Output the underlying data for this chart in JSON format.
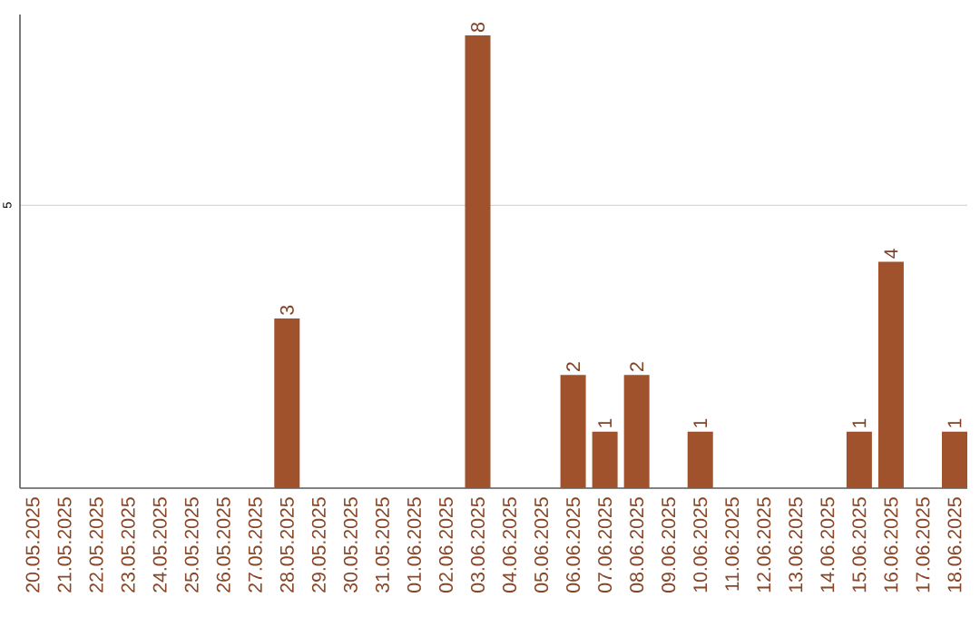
{
  "chart_data": {
    "type": "bar",
    "color": "#a0522d",
    "categories": [
      "20.05.2025",
      "21.05.2025",
      "22.05.2025",
      "23.05.2025",
      "24.05.2025",
      "25.05.2025",
      "26.05.2025",
      "27.05.2025",
      "28.05.2025",
      "29.05.2025",
      "30.05.2025",
      "31.05.2025",
      "01.06.2025",
      "02.06.2025",
      "03.06.2025",
      "04.06.2025",
      "05.06.2025",
      "06.06.2025",
      "07.06.2025",
      "08.06.2025",
      "09.06.2025",
      "10.06.2025",
      "11.06.2025",
      "12.06.2025",
      "13.06.2025",
      "14.06.2025",
      "15.06.2025",
      "16.06.2025",
      "17.06.2025",
      "18.06.2025"
    ],
    "values": [
      0,
      0,
      0,
      0,
      0,
      0,
      0,
      0,
      3,
      0,
      0,
      0,
      0,
      0,
      8,
      0,
      0,
      2,
      1,
      2,
      0,
      1,
      0,
      0,
      0,
      0,
      1,
      4,
      0,
      1
    ],
    "value_labels": [
      null,
      null,
      null,
      null,
      null,
      null,
      null,
      null,
      "3",
      null,
      null,
      null,
      null,
      null,
      "8",
      null,
      null,
      "2",
      "1",
      "2",
      null,
      "1",
      null,
      null,
      null,
      null,
      "1",
      "4",
      null,
      "1"
    ],
    "ylim": [
      0,
      8.37
    ],
    "yticks": [
      5
    ],
    "grid": "y"
  }
}
